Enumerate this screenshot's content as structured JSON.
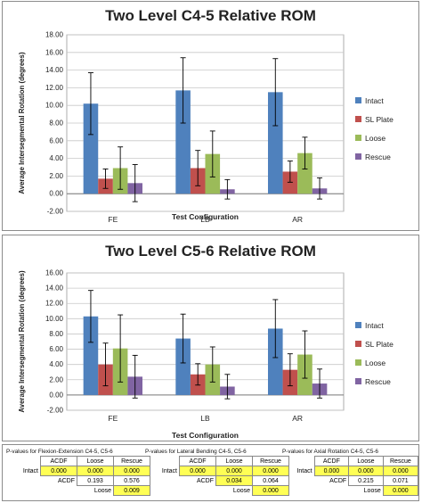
{
  "chart_data": [
    {
      "type": "bar",
      "title": "Two Level C4-5 Relative ROM",
      "xlabel": "Test Configuration",
      "ylabel": "Average Intersegmental Rotation (degrees)",
      "ylim": [
        -2,
        18
      ],
      "yticks": [
        "-2.00",
        "0.00",
        "2.00",
        "4.00",
        "6.00",
        "8.00",
        "10.00",
        "12.00",
        "14.00",
        "16.00",
        "18.00"
      ],
      "categories": [
        "FE",
        "LB",
        "AR"
      ],
      "grid": true,
      "legend_position": "right",
      "series": [
        {
          "name": "Intact",
          "color": "#4f81bd",
          "values": [
            10.2,
            11.7,
            11.5
          ],
          "errors": [
            3.5,
            3.7,
            3.8
          ]
        },
        {
          "name": "SL Plate",
          "color": "#c0504d",
          "values": [
            1.7,
            2.9,
            2.5
          ],
          "errors": [
            1.1,
            2.0,
            1.2
          ]
        },
        {
          "name": "Loose",
          "color": "#9bbb59",
          "values": [
            2.9,
            4.5,
            4.6
          ],
          "errors": [
            2.4,
            2.6,
            1.8
          ]
        },
        {
          "name": "Rescue",
          "color": "#8064a2",
          "values": [
            1.2,
            0.5,
            0.6
          ],
          "errors": [
            2.1,
            1.1,
            1.2
          ]
        }
      ]
    },
    {
      "type": "bar",
      "title": "Two Level C5-6 Relative ROM",
      "xlabel": "Test Configuration",
      "ylabel": "Average Intersegmental Rotation (degrees)",
      "ylim": [
        -2,
        16
      ],
      "yticks": [
        "-2.00",
        "0.00",
        "2.00",
        "4.00",
        "6.00",
        "8.00",
        "10.00",
        "12.00",
        "14.00",
        "16.00"
      ],
      "categories": [
        "FE",
        "LB",
        "AR"
      ],
      "grid": true,
      "legend_position": "right",
      "series": [
        {
          "name": "Intact",
          "color": "#4f81bd",
          "values": [
            10.3,
            7.4,
            8.7
          ],
          "errors": [
            3.4,
            3.2,
            3.8
          ]
        },
        {
          "name": "SL Plate",
          "color": "#c0504d",
          "values": [
            4.0,
            2.7,
            3.3
          ],
          "errors": [
            2.8,
            1.4,
            2.1
          ]
        },
        {
          "name": "Loose",
          "color": "#9bbb59",
          "values": [
            6.1,
            4.0,
            5.3
          ],
          "errors": [
            4.4,
            2.3,
            3.1
          ]
        },
        {
          "name": "Rescue",
          "color": "#8064a2",
          "values": [
            2.4,
            1.1,
            1.5
          ],
          "errors": [
            2.8,
            1.6,
            1.9
          ]
        }
      ]
    }
  ],
  "pvalue_tables": [
    {
      "caption": "P-values for Flexion-Extension C4-5, C5-6",
      "header": [
        "ACDF",
        "Loose",
        "Rescue"
      ],
      "rows": [
        {
          "label": "Intact",
          "cells": [
            "0.000",
            "0.000",
            "0.000"
          ],
          "sig": [
            true,
            true,
            true
          ]
        },
        {
          "label": "ACDF",
          "cells": [
            "0.193",
            "0.576"
          ],
          "sig": [
            false,
            false
          ]
        },
        {
          "label": "Loose",
          "cells": [
            "0.009"
          ],
          "sig": [
            true
          ]
        }
      ]
    },
    {
      "caption": "P-values for Lateral Bending C4-5, C5-6",
      "header": [
        "ACDF",
        "Loose",
        "Rescue"
      ],
      "rows": [
        {
          "label": "Intact",
          "cells": [
            "0.000",
            "0.000",
            "0.000"
          ],
          "sig": [
            true,
            true,
            true
          ]
        },
        {
          "label": "ACDF",
          "cells": [
            "0.034",
            "0.064"
          ],
          "sig": [
            true,
            false
          ]
        },
        {
          "label": "Loose",
          "cells": [
            "0.000"
          ],
          "sig": [
            true
          ]
        }
      ]
    },
    {
      "caption": "P-values for Axial Rotation C4-5, C5-6",
      "header": [
        "ACDF",
        "Loose",
        "Rescue"
      ],
      "rows": [
        {
          "label": "Intact",
          "cells": [
            "0.000",
            "0.000",
            "0.000"
          ],
          "sig": [
            true,
            true,
            true
          ]
        },
        {
          "label": "ACDF",
          "cells": [
            "0.215",
            "0.071"
          ],
          "sig": [
            false,
            false
          ]
        },
        {
          "label": "Loose",
          "cells": [
            "0.000"
          ],
          "sig": [
            true
          ]
        }
      ]
    }
  ]
}
